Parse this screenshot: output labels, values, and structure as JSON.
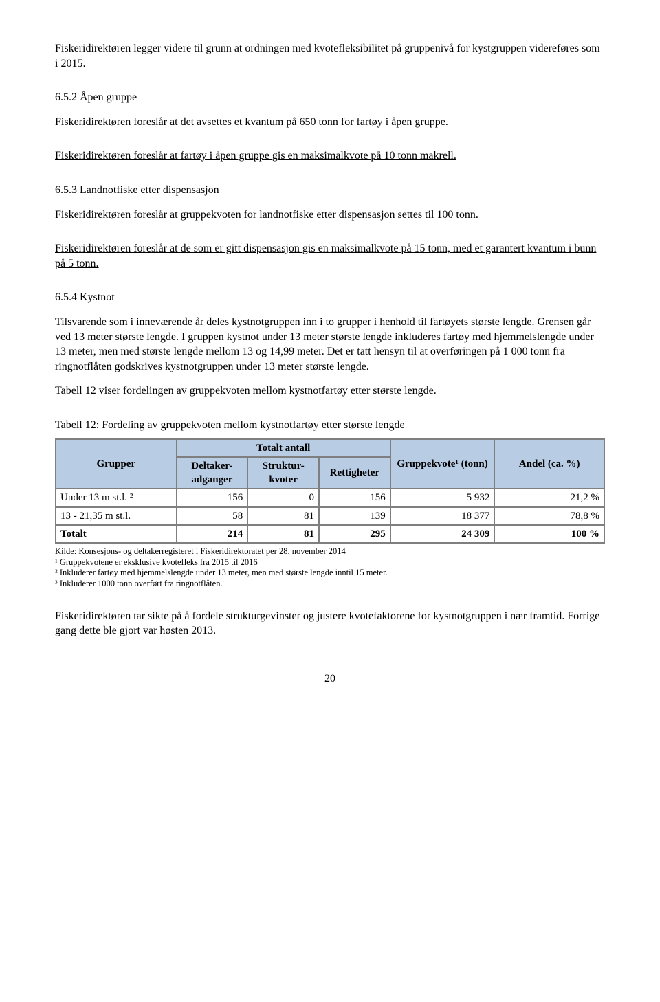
{
  "paragraphs": {
    "p1": "Fiskeridirektøren legger videre til grunn at ordningen med kvotefleksibilitet på gruppenivå for kystgruppen videreføres som i 2015.",
    "h652": "6.5.2 Åpen gruppe",
    "p2": "Fiskeridirektøren foreslår at det avsettes et kvantum på 650 tonn for fartøy i åpen gruppe.",
    "p3": "Fiskeridirektøren foreslår at fartøy i åpen gruppe gis en maksimalkvote på 10 tonn makrell.",
    "h653": "6.5.3 Landnotfiske etter dispensasjon",
    "p4": "Fiskeridirektøren foreslår at gruppekvoten for landnotfiske etter dispensasjon settes til 100 tonn.",
    "p5": "Fiskeridirektøren foreslår at de som er gitt dispensasjon gis en maksimalkvote på 15 tonn, med et garantert kvantum i bunn på 5 tonn.",
    "h654": "6.5.4 Kystnot",
    "p6": "Tilsvarende som i inneværende år deles kystnotgruppen inn i to grupper i henhold til fartøyets største lengde. Grensen går ved 13 meter største lengde. I gruppen kystnot under 13 meter største lengde inkluderes fartøy med hjemmelslengde under 13 meter, men med største lengde mellom 13 og 14,99 meter. Det er tatt hensyn til at overføringen på 1 000 tonn fra ringnotflåten godskrives kystnotgruppen under 13 meter største lengde.",
    "p7": "Tabell 12 viser fordelingen av gruppekvoten mellom kystnotfartøy etter største lengde.",
    "tcaption": "Tabell 12: Fordeling av gruppekvoten mellom kystnotfartøy etter største lengde",
    "p8": "Fiskeridirektøren tar sikte på å fordele strukturgevinster og justere kvotefaktorene for kystnotgruppen i nær framtid. Forrige gang dette ble gjort var høsten 2013."
  },
  "table": {
    "header_bg": "#b8cce4",
    "border_color": "#7f7f7f",
    "columns": {
      "grupper": "Grupper",
      "totalt_antall": "Totalt antall",
      "deltaker": "Deltaker-adganger",
      "struktur": "Struktur-kvoter",
      "rettigheter": "Rettigheter",
      "gruppekvote": "Gruppekvote¹ (tonn)",
      "andel": "Andel (ca. %)"
    },
    "rows": [
      {
        "grupper": "Under 13 m st.l. ²",
        "deltaker": "156",
        "struktur": "0",
        "rettigheter": "156",
        "gruppekvote": "5 932",
        "andel": "21,2 %"
      },
      {
        "grupper": "13 - 21,35 m st.l.",
        "deltaker": "58",
        "struktur": "81",
        "rettigheter": "139",
        "gruppekvote": "18 377",
        "andel": "78,8 %"
      },
      {
        "grupper": "Totalt",
        "deltaker": "214",
        "struktur": "81",
        "rettigheter": "295",
        "gruppekvote": "24 309",
        "andel": "100 %"
      }
    ],
    "col_widths": [
      "22%",
      "13%",
      "13%",
      "13%",
      "19%",
      "20%"
    ]
  },
  "footnotes": {
    "f0": "Kilde: Konsesjons- og deltakerregisteret i Fiskeridirektoratet per 28. november 2014",
    "f1": "¹ Gruppekvotene er eksklusive kvotefleks fra 2015 til 2016",
    "f2": "² Inkluderer fartøy med hjemmelslengde under 13 meter, men med største lengde inntil 15 meter.",
    "f3": "³ Inkluderer 1000 tonn overført fra ringnotflåten."
  },
  "page_number": "20"
}
